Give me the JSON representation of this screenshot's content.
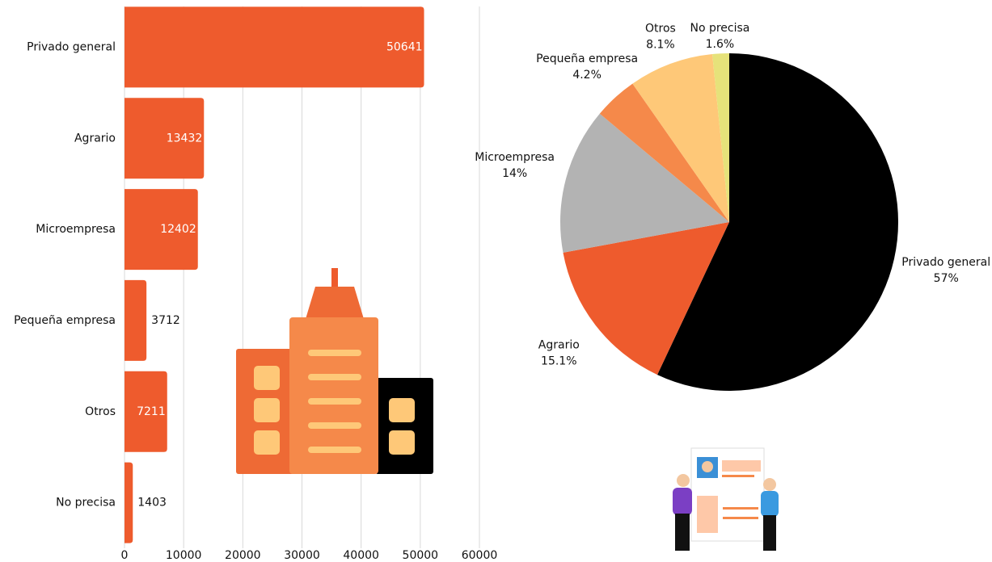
{
  "chart_data": [
    {
      "type": "hbar",
      "categories": [
        "Privado general",
        "Agrario",
        "Microempresa",
        "Pequeña empresa",
        "Otros",
        "No precisa"
      ],
      "values": [
        50641,
        13432,
        12402,
        3712,
        7211,
        1403
      ],
      "color": "#ee5b2d",
      "xlim": [
        0,
        60000
      ],
      "xticks": [
        0,
        10000,
        20000,
        30000,
        40000,
        50000,
        60000
      ],
      "grid": true
    },
    {
      "type": "pie",
      "categories": [
        "Privado general",
        "Agrario",
        "Microempresa",
        "Pequeña empresa",
        "Otros",
        "No precisa"
      ],
      "values": [
        57,
        15.1,
        14,
        4.2,
        8.1,
        1.6
      ],
      "value_labels": [
        "57%",
        "15.1%",
        "14%",
        "4.2%",
        "8.1%",
        "1.6%"
      ],
      "colors": [
        "#000000",
        "#ee5b2d",
        "#b3b3b3",
        "#f5894a",
        "#fec878",
        "#e6e27a"
      ]
    }
  ]
}
